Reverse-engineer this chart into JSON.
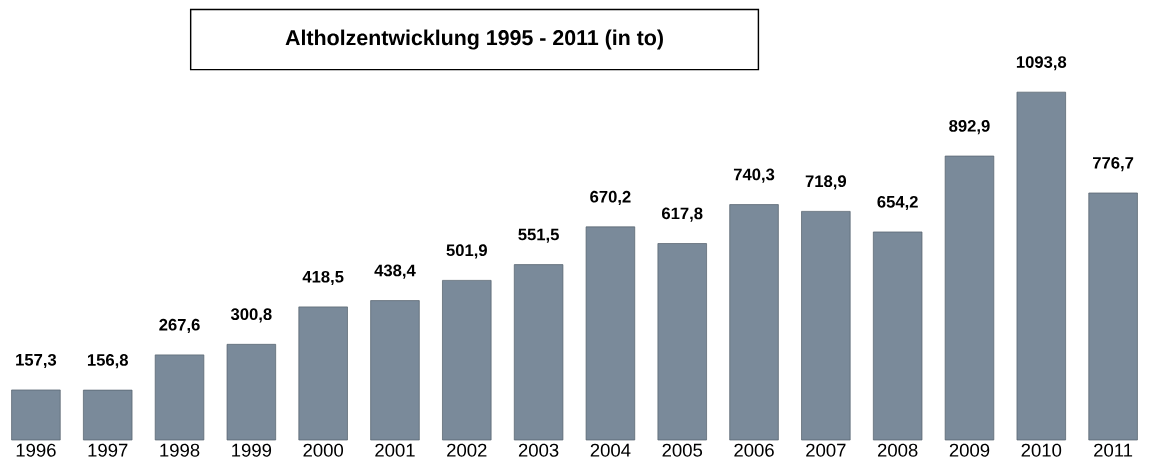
{
  "chart_data": {
    "type": "bar",
    "title": "Altholzentwicklung 1995 - 2011 (in to)",
    "categories": [
      "1996",
      "1997",
      "1998",
      "1999",
      "2000",
      "2001",
      "2002",
      "2003",
      "2004",
      "2005",
      "2006",
      "2007",
      "2008",
      "2009",
      "2010",
      "2011"
    ],
    "values": [
      157.3,
      156.8,
      267.6,
      300.8,
      418.5,
      438.4,
      501.9,
      551.5,
      670.2,
      617.8,
      740.3,
      718.9,
      654.2,
      892.9,
      1093.8,
      776.7
    ],
    "value_labels": [
      "157,3",
      "156,8",
      "267,6",
      "300,8",
      "418,5",
      "438,4",
      "501,9",
      "551,5",
      "670,2",
      "617,8",
      "740,3",
      "718,9",
      "654,2",
      "892,9",
      "1093,8",
      "776,7"
    ],
    "color": "#7a8a9a"
  }
}
